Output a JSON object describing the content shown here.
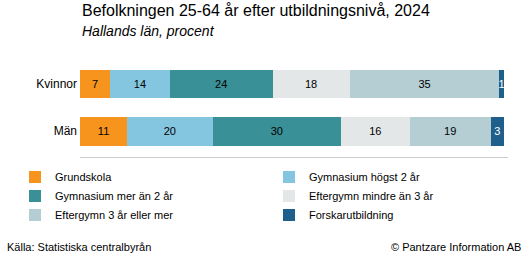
{
  "chart_data": {
    "type": "bar",
    "orientation": "horizontal",
    "stacked": true,
    "data_labels": true,
    "tick_labels": "y",
    "grid": false,
    "legend": "bottom",
    "title": "Befolkningen 25-64 år efter utbildningsnivå, 2024",
    "subtitle": "Hallands län, procent",
    "annotations": [
      "Källa: Statistiska centralbyrån",
      "© Pantzare Information AB"
    ],
    "categories": [
      "Kvinnor",
      "Män"
    ],
    "xlim": [
      0,
      100
    ],
    "xticks": [],
    "series": [
      {
        "name": "Grundskola",
        "color": "#f7941d",
        "values": [
          7,
          11
        ]
      },
      {
        "name": "Gymnasium högst 2 år",
        "color": "#84c5e0",
        "values": [
          14,
          20
        ]
      },
      {
        "name": "Gymnasium mer än 2 år",
        "color": "#3a9097",
        "values": [
          24,
          30
        ]
      },
      {
        "name": "Eftergymn mindre än 3 år",
        "color": "#e4e7e8",
        "values": [
          18,
          16
        ]
      },
      {
        "name": "Eftergymn 3 år eller mer",
        "color": "#b5ced4",
        "values": [
          35,
          19
        ]
      },
      {
        "name": "Forskarutbildning",
        "color": "#1f5f8b",
        "values": [
          1,
          3
        ]
      }
    ]
  }
}
